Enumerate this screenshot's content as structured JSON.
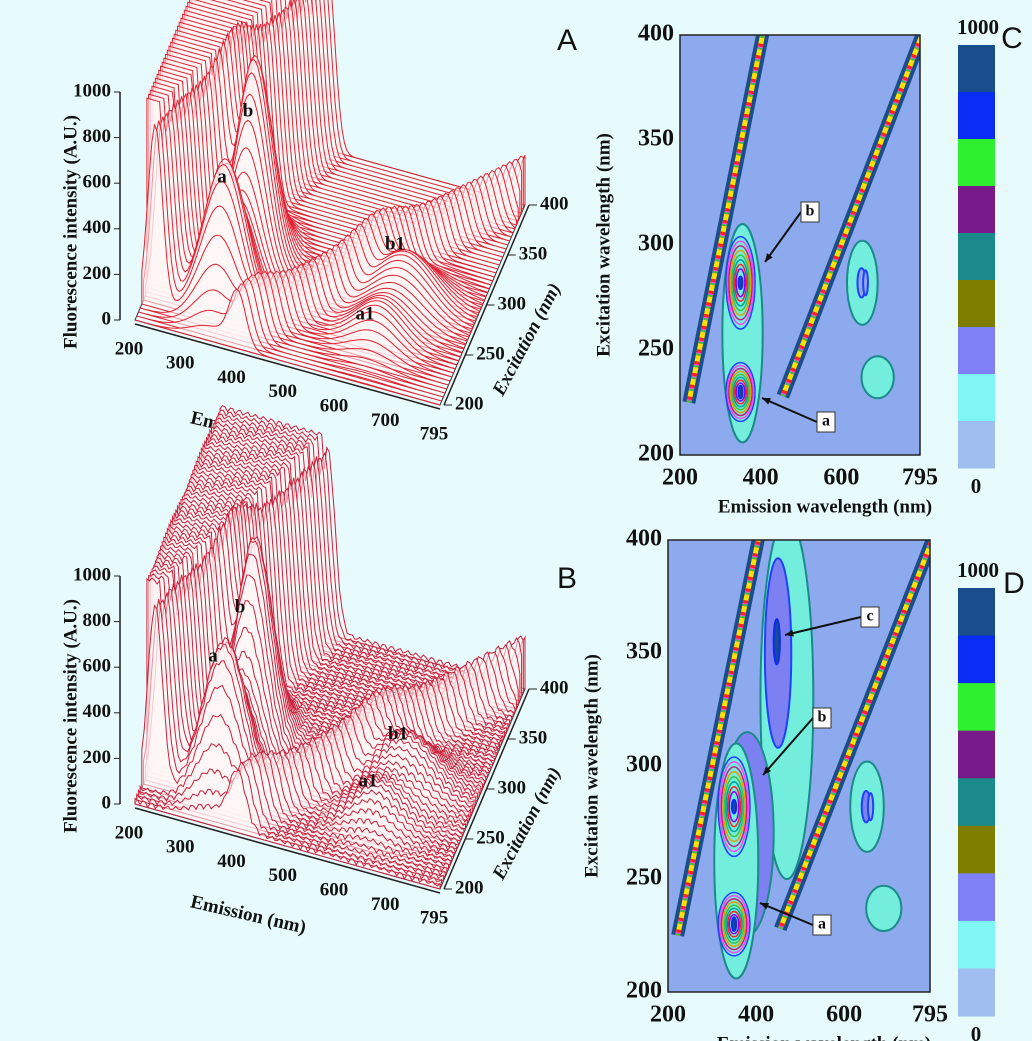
{
  "background": "#e8fbfc",
  "panels": [
    {
      "letter": "A",
      "type": "surface3d",
      "line_color": "#e02030",
      "z_label": "Fluorescence intensity (A.U.)",
      "z_ticks": [
        0,
        200,
        400,
        600,
        800,
        1000
      ],
      "x_label": "Emission (nm)",
      "x_ticks": [
        200,
        300,
        400,
        500,
        600,
        700,
        795
      ],
      "y_label": "Excitation (nm)",
      "y_ticks": [
        200,
        250,
        300,
        350,
        400
      ],
      "peaks": [
        "a",
        "b",
        "b1",
        "a1"
      ]
    },
    {
      "letter": "C",
      "type": "contour",
      "x_label": "Emission wavelength (nm)",
      "x_ticks": [
        200,
        400,
        600,
        795
      ],
      "y_label": "Excitation wavelength (nm)",
      "y_ticks": [
        200,
        250,
        300,
        350,
        400
      ],
      "annotations": [
        "b",
        "a"
      ],
      "colorbar_ticks": [
        1000,
        0
      ],
      "colorbar_colors": [
        "#1a4d8c",
        "#0a2cf5",
        "#2ef02e",
        "#781a8a",
        "#1a8a8a",
        "#7d7d00",
        "#7f80f5",
        "#7ff5f5",
        "#a0bdf0"
      ]
    },
    {
      "letter": "B",
      "type": "surface3d",
      "line_color": "#c8203a",
      "z_label": "Fluorescence intensity (A.U.)",
      "z_ticks": [
        0,
        200,
        400,
        600,
        800,
        1000
      ],
      "x_label": "Emission (nm)",
      "x_ticks": [
        200,
        300,
        400,
        500,
        600,
        700,
        795
      ],
      "y_label": "Excitation (nm)",
      "y_ticks": [
        200,
        250,
        300,
        350,
        400
      ],
      "peaks": [
        "a",
        "b",
        "b1",
        "a1"
      ]
    },
    {
      "letter": "D",
      "type": "contour",
      "x_label": "Emission wavelength (nm)",
      "x_ticks": [
        200,
        400,
        600,
        795
      ],
      "y_label": "Excitation wavelength (nm)",
      "y_ticks": [
        200,
        250,
        300,
        350,
        400
      ],
      "annotations": [
        "c",
        "b",
        "a"
      ],
      "colorbar_ticks": [
        1000,
        0
      ],
      "colorbar_colors": [
        "#1a4d8c",
        "#0a2cf5",
        "#2ef02e",
        "#781a8a",
        "#1a8a8a",
        "#7d7d00",
        "#7f80f5",
        "#7ff5f5",
        "#a0bdf0"
      ]
    }
  ]
}
